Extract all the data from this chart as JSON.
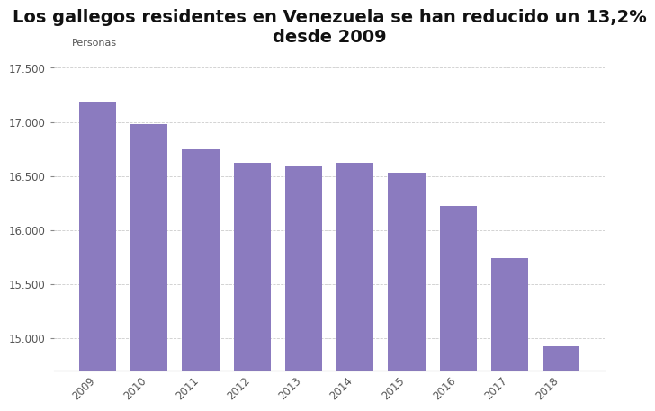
{
  "title": "Los gallegos residentes en Venezuela se han reducido un 13,2%\ndesde 2009",
  "ylabel": "Personas",
  "years": [
    2009,
    2010,
    2011,
    2012,
    2013,
    2014,
    2015,
    2016,
    2017,
    2018
  ],
  "values": [
    17190,
    16980,
    16750,
    16620,
    16590,
    16620,
    16530,
    16220,
    15740,
    14920
  ],
  "bar_color": "#8b7bbf",
  "background_color": "#ffffff",
  "ylim_min": 14700,
  "ylim_max": 17600,
  "ytick_values": [
    15000,
    15500,
    16000,
    16500,
    17000,
    17500
  ],
  "ytick_labels": [
    "15.000",
    "15.500",
    "16.000",
    "16.500",
    "17.000",
    "17.500"
  ],
  "title_fontsize": 14,
  "ylabel_fontsize": 8,
  "tick_fontsize": 8.5,
  "grid_color": "#cccccc",
  "spine_color": "#888888"
}
